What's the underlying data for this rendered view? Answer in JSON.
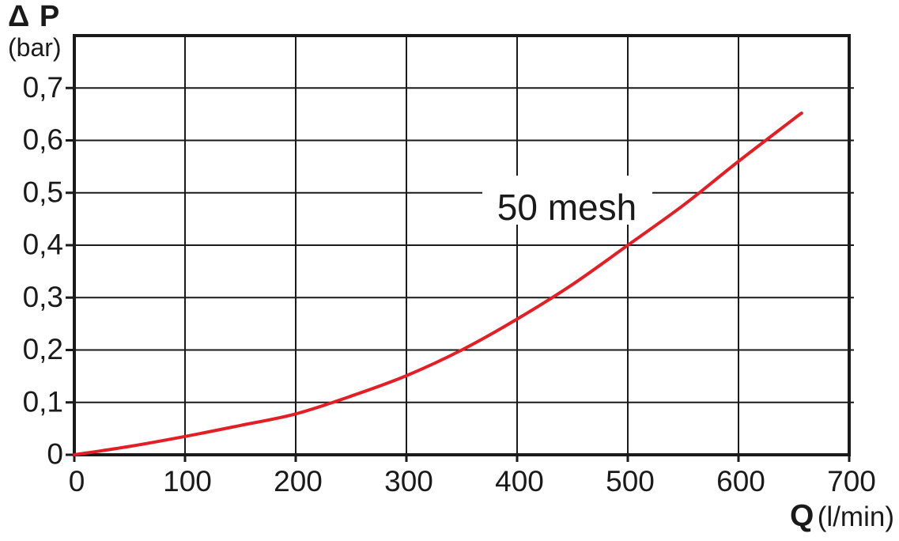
{
  "y_axis": {
    "symbol": "Δ P",
    "unit": "(bar)"
  },
  "x_axis": {
    "symbol": "Q",
    "unit": "(l/min)"
  },
  "colors": {
    "curve": "#e31e24",
    "grid": "#1a1a1a",
    "frame": "#1a1a1a",
    "text": "#1a1a1a",
    "background": "#ffffff"
  },
  "chart_data": {
    "type": "line",
    "title": "",
    "xlabel": "Q (l/min)",
    "ylabel": "Δ P (bar)",
    "xlim": [
      0,
      700
    ],
    "ylim": [
      0,
      0.8
    ],
    "x_ticks": [
      0,
      100,
      200,
      300,
      400,
      500,
      600,
      700
    ],
    "x_tick_labels": [
      "0",
      "100",
      "200",
      "300",
      "400",
      "500",
      "600",
      "700"
    ],
    "y_ticks": [
      0,
      0.1,
      0.2,
      0.3,
      0.4,
      0.5,
      0.6,
      0.7
    ],
    "y_tick_labels": [
      "0",
      "0,1",
      "0,2",
      "0,3",
      "0,4",
      "0,5",
      "0,6",
      "0,7"
    ],
    "grid": true,
    "legend_position": "none",
    "annotation": {
      "text": "50 mesh",
      "x": 445,
      "y": 0.475
    },
    "series": [
      {
        "name": "50 mesh",
        "color": "#e31e24",
        "x": [
          0,
          50,
          100,
          150,
          200,
          250,
          300,
          350,
          400,
          450,
          500,
          550,
          600,
          650,
          657
        ],
        "y": [
          0,
          0.016,
          0.035,
          0.056,
          0.078,
          0.112,
          0.151,
          0.2,
          0.259,
          0.325,
          0.4,
          0.476,
          0.56,
          0.641,
          0.652
        ]
      }
    ]
  }
}
